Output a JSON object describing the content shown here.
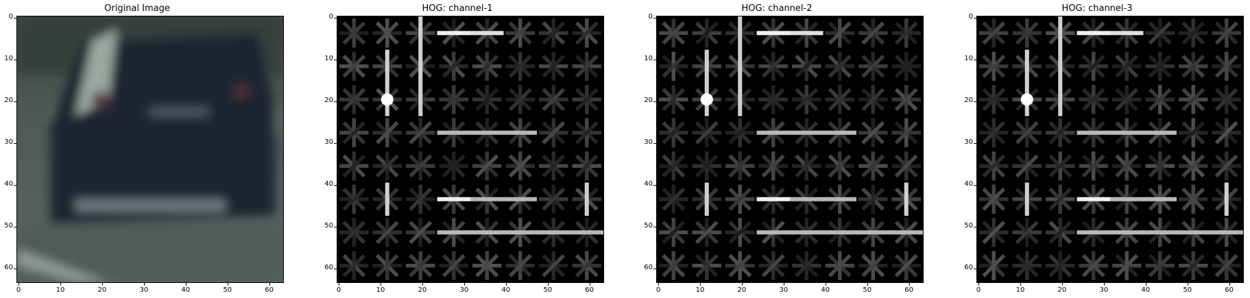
{
  "panels": [
    {
      "id": "original",
      "title": "Original Image"
    },
    {
      "id": "hog1",
      "title": "HOG: channel-1"
    },
    {
      "id": "hog2",
      "title": "HOG: channel-2"
    },
    {
      "id": "hog3",
      "title": "HOG: channel-3"
    }
  ],
  "axes": {
    "x_ticks": [
      "0",
      "10",
      "20",
      "30",
      "40",
      "50",
      "60"
    ],
    "y_ticks": [
      "0",
      "10",
      "20",
      "30",
      "40",
      "50",
      "60"
    ],
    "range": [
      0,
      64
    ]
  },
  "colors": {
    "hog_background": "#000000",
    "hog_strong": "#ffffff",
    "car_body": "#1f2a36",
    "road": "#4a5a58"
  }
}
